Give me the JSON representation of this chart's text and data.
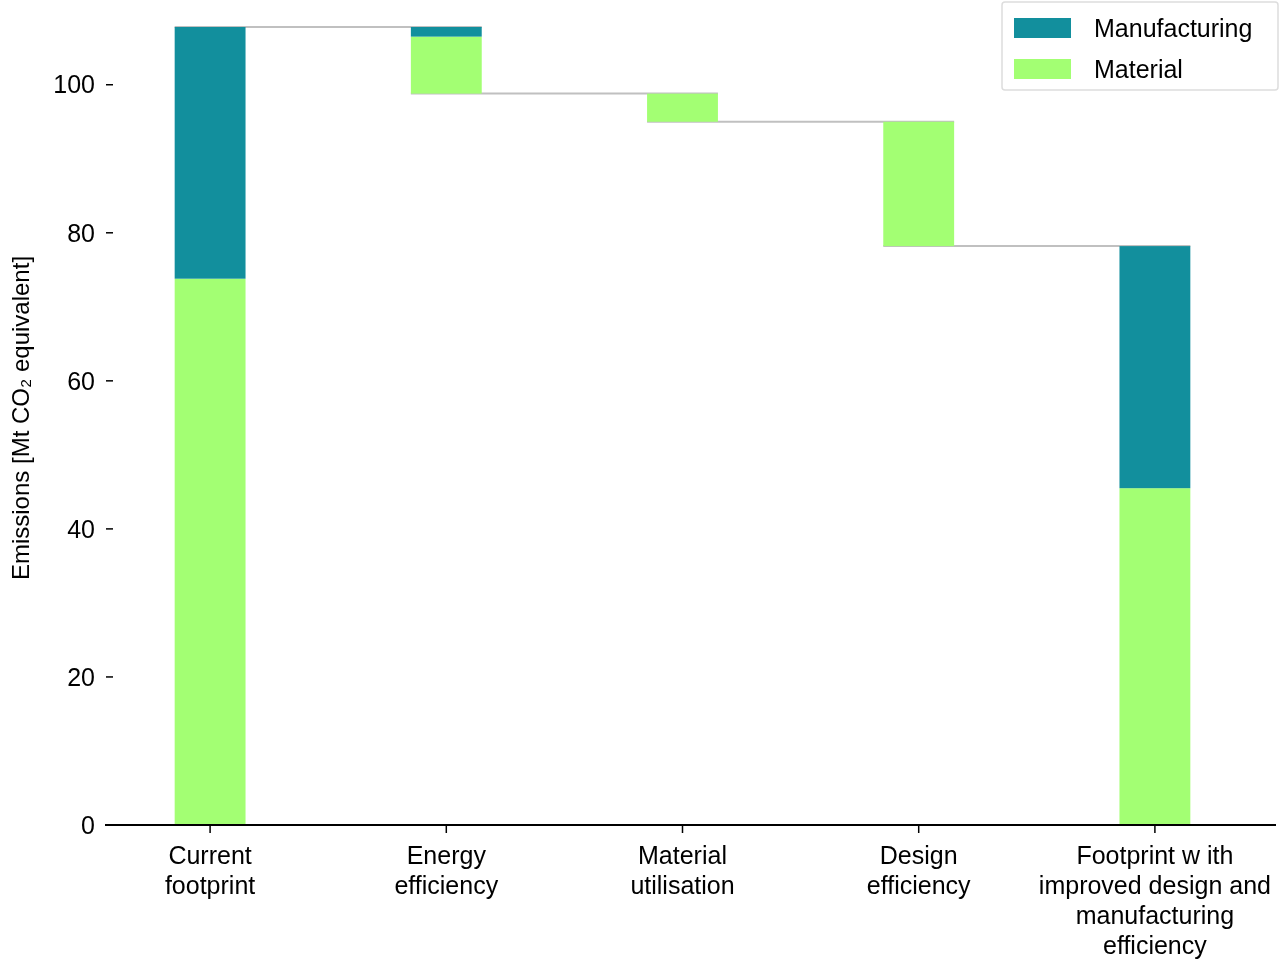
{
  "chart_data": {
    "type": "bar",
    "ylabel": "Emissions [Mt CO₂ equivalent]",
    "categories": [
      "Current footprint",
      "Energy efficiency",
      "Material utilisation",
      "Design efficiency",
      "Footprint w ith improved design and manufacturing efficiency"
    ],
    "series": [
      {
        "name": "Material",
        "color": "#a3ff73",
        "base": [
          0,
          98.8,
          95,
          78.2,
          0
        ],
        "values": [
          73.8,
          7.7,
          3.8,
          16.8,
          45.5
        ]
      },
      {
        "name": "Manufacturing",
        "color": "#128f9d",
        "base": [
          73.8,
          106.5,
          null,
          null,
          45.5
        ],
        "values": [
          34,
          1.3,
          null,
          null,
          32.7
        ]
      }
    ],
    "ylim": [
      0,
      107.8
    ],
    "yticks": [
      0,
      20,
      40,
      60,
      80,
      100
    ],
    "grid": false,
    "legend": "top right"
  }
}
